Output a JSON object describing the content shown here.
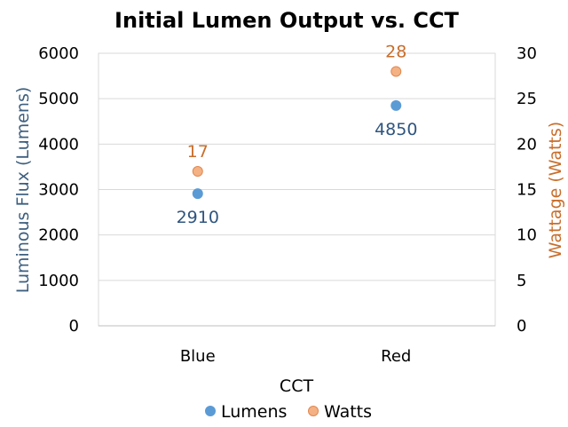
{
  "chart_data": {
    "type": "scatter",
    "title": "Initial Lumen Output vs. CCT",
    "xlabel": "CCT",
    "ylabel": "Luminous Flux (Lumens)",
    "y2label": "Wattage (Watts)",
    "categories": [
      "Blue",
      "Red"
    ],
    "ylim": [
      0,
      6000
    ],
    "y2lim": [
      0,
      30
    ],
    "yticks": [
      0,
      1000,
      2000,
      3000,
      4000,
      5000,
      6000
    ],
    "y2ticks": [
      0,
      5,
      10,
      15,
      20,
      25,
      30
    ],
    "grid": true,
    "legend_position": "bottom",
    "series": [
      {
        "name": "Lumens",
        "axis": "left",
        "values": [
          2910,
          4850
        ],
        "color": "#5b9bd5",
        "label_position": "below"
      },
      {
        "name": "Watts",
        "axis": "right",
        "values": [
          17,
          28
        ],
        "color": "#f4b183",
        "edge_color": "#e08850",
        "label_position": "above"
      }
    ]
  }
}
